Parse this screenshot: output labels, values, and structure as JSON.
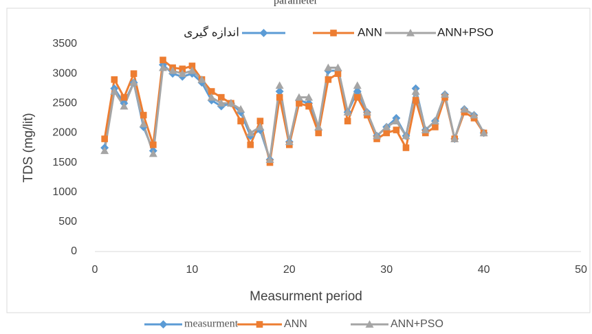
{
  "chart_data": {
    "type": "line",
    "title": "parameter",
    "x_label": "Measurment period",
    "y_label": "TDS (mg/lit)",
    "x": [
      1,
      2,
      3,
      4,
      5,
      6,
      7,
      8,
      9,
      10,
      11,
      12,
      13,
      14,
      15,
      16,
      17,
      18,
      19,
      20,
      21,
      22,
      23,
      24,
      25,
      26,
      27,
      28,
      29,
      30,
      31,
      32,
      33,
      34,
      35,
      36,
      37,
      38,
      39,
      40
    ],
    "series": [
      {
        "name": "اندازه گیری",
        "color": "#5b9bd5",
        "marker": "diamond",
        "values": [
          1750,
          2750,
          2500,
          2850,
          2100,
          1700,
          3150,
          3000,
          2950,
          3000,
          2850,
          2550,
          2450,
          2500,
          2350,
          1950,
          2050,
          1550,
          2700,
          1850,
          2550,
          2500,
          2050,
          3050,
          3050,
          2350,
          2700,
          2350,
          1950,
          2100,
          2250,
          1950,
          2750,
          2050,
          2200,
          2650,
          1900,
          2400,
          2300,
          2000
        ]
      },
      {
        "name": "ANN",
        "color": "#ed7d31",
        "marker": "square",
        "values": [
          1900,
          2900,
          2600,
          3000,
          2300,
          1800,
          3230,
          3100,
          3080,
          3130,
          2900,
          2700,
          2600,
          2500,
          2200,
          1800,
          2200,
          1500,
          2600,
          1800,
          2500,
          2450,
          2000,
          2900,
          3000,
          2200,
          2600,
          2300,
          1900,
          2000,
          2050,
          1750,
          2550,
          2000,
          2100,
          2600,
          1900,
          2350,
          2250,
          2000
        ]
      },
      {
        "name": "ANN+PSO",
        "color": "#a5a5a5",
        "marker": "triangle",
        "values": [
          1700,
          2700,
          2450,
          2850,
          2150,
          1650,
          3100,
          3050,
          3000,
          3050,
          2900,
          2600,
          2500,
          2500,
          2400,
          2000,
          2100,
          1550,
          2800,
          1850,
          2600,
          2600,
          2100,
          3100,
          3100,
          2350,
          2800,
          2350,
          1950,
          2100,
          2200,
          1950,
          2700,
          2050,
          2200,
          2650,
          1900,
          2400,
          2300,
          2000
        ]
      }
    ],
    "bottom_legend": [
      "measurment",
      "ANN",
      "ANN+PSO"
    ],
    "xlim": [
      0,
      50
    ],
    "xticks": [
      0,
      10,
      20,
      30,
      40,
      50
    ],
    "ylim": [
      0,
      3500
    ],
    "yticks": [
      0,
      500,
      1000,
      1500,
      2000,
      2500,
      3000,
      3500
    ],
    "grid": false
  }
}
